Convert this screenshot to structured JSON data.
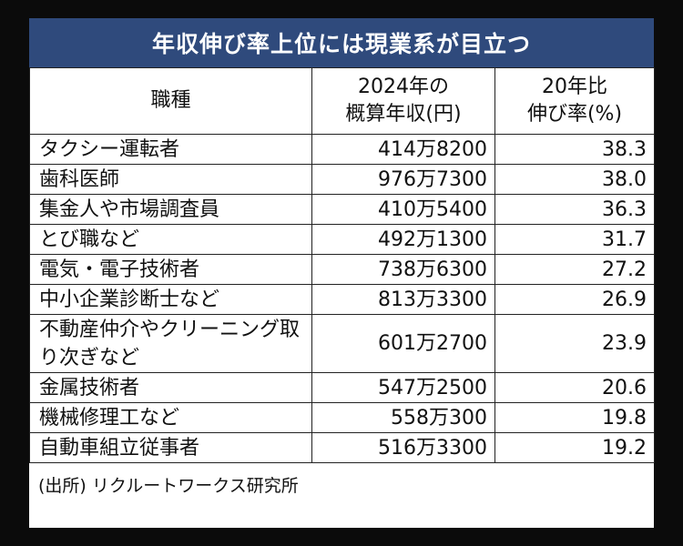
{
  "title": "年収伸び率上位には現業系が目立つ",
  "header": {
    "col1": "職種",
    "col2_line1": "2024年の",
    "col2_line2": "概算年収(円)",
    "col3_line1": "20年比",
    "col3_line2": "伸び率(%)"
  },
  "rows": [
    {
      "job": "タクシー運転者",
      "income": "414万8200",
      "growth": "38.3"
    },
    {
      "job": "歯科医師",
      "income": "976万7300",
      "growth": "38.0"
    },
    {
      "job": "集金人や市場調査員",
      "income": "410万5400",
      "growth": "36.3"
    },
    {
      "job": "とび職など",
      "income": "492万1300",
      "growth": "31.7"
    },
    {
      "job": "電気・電子技術者",
      "income": "738万6300",
      "growth": "27.2"
    },
    {
      "job": "中小企業診断士など",
      "income": "813万3300",
      "growth": "26.9"
    },
    {
      "job": "不動産仲介やクリーニング取り次ぎなど",
      "income": "601万2700",
      "growth": "23.9"
    },
    {
      "job": "金属技術者",
      "income": "547万2500",
      "growth": "20.6"
    },
    {
      "job": "機械修理工など",
      "income": "558万300",
      "growth": "19.8"
    },
    {
      "job": "自動車組立従事者",
      "income": "516万3300",
      "growth": "19.2"
    }
  ],
  "source": "(出所) リクルートワークス研究所",
  "colors": {
    "title_bg": "#2f4a7c",
    "title_text": "#ffffff",
    "page_bg": "#0b0b0b"
  }
}
